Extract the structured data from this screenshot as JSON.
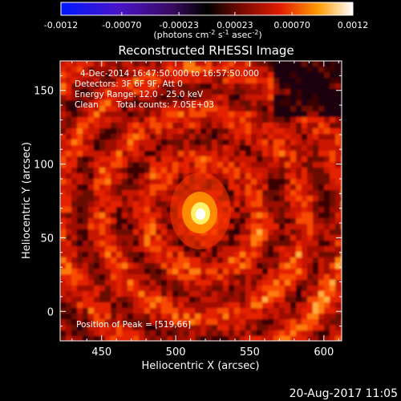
{
  "colorbar": {
    "ticks": [
      "-0.0012",
      "-0.00070",
      "-0.00023",
      "0.00023",
      "0.00070",
      "0.0012"
    ],
    "tick_values": [
      -0.0012,
      -0.0007,
      -0.00023,
      0.00023,
      0.0007,
      0.0012
    ],
    "range": [
      -0.0012,
      0.0012
    ],
    "units_prefix": "(photons cm",
    "units_exp1": "-2",
    "units_mid1": " s",
    "units_exp2": "-1",
    "units_mid2": " asec",
    "units_exp3": "-2",
    "units_suffix": ")"
  },
  "title": "Reconstructed RHESSI Image",
  "info": {
    "line1": "4-Dec-2014 16:47:50.000 to 16:57:50.000",
    "line2": "Detectors: 3F 6F 9F, Att 0",
    "line3": "Energy Range: 12.0 - 25.0 keV",
    "line4_a": "Clean",
    "line4_b": "Total counts: 7.05E+03"
  },
  "peak_label": "Position of Peak = [519,66]",
  "footer_timestamp": "20-Aug-2017 11:05",
  "chart_data": {
    "type": "heatmap",
    "title": "Reconstructed RHESSI Image",
    "xlabel": "Heliocentric X (arcsec)",
    "ylabel": "Heliocentric Y (arcsec)",
    "xlim": [
      422,
      612
    ],
    "ylim": [
      -20,
      170
    ],
    "xticks": [
      450,
      500,
      550,
      600
    ],
    "yticks": [
      0,
      50,
      100,
      150
    ],
    "peak": [
      519,
      66
    ],
    "colormap": "RHESSI heat",
    "colors": {
      "low": "#1428ff",
      "mid": "#000000",
      "high": "#ffffff",
      "hot": "#ff2a00",
      "background": "#000000",
      "frame": "#ffffff"
    }
  }
}
